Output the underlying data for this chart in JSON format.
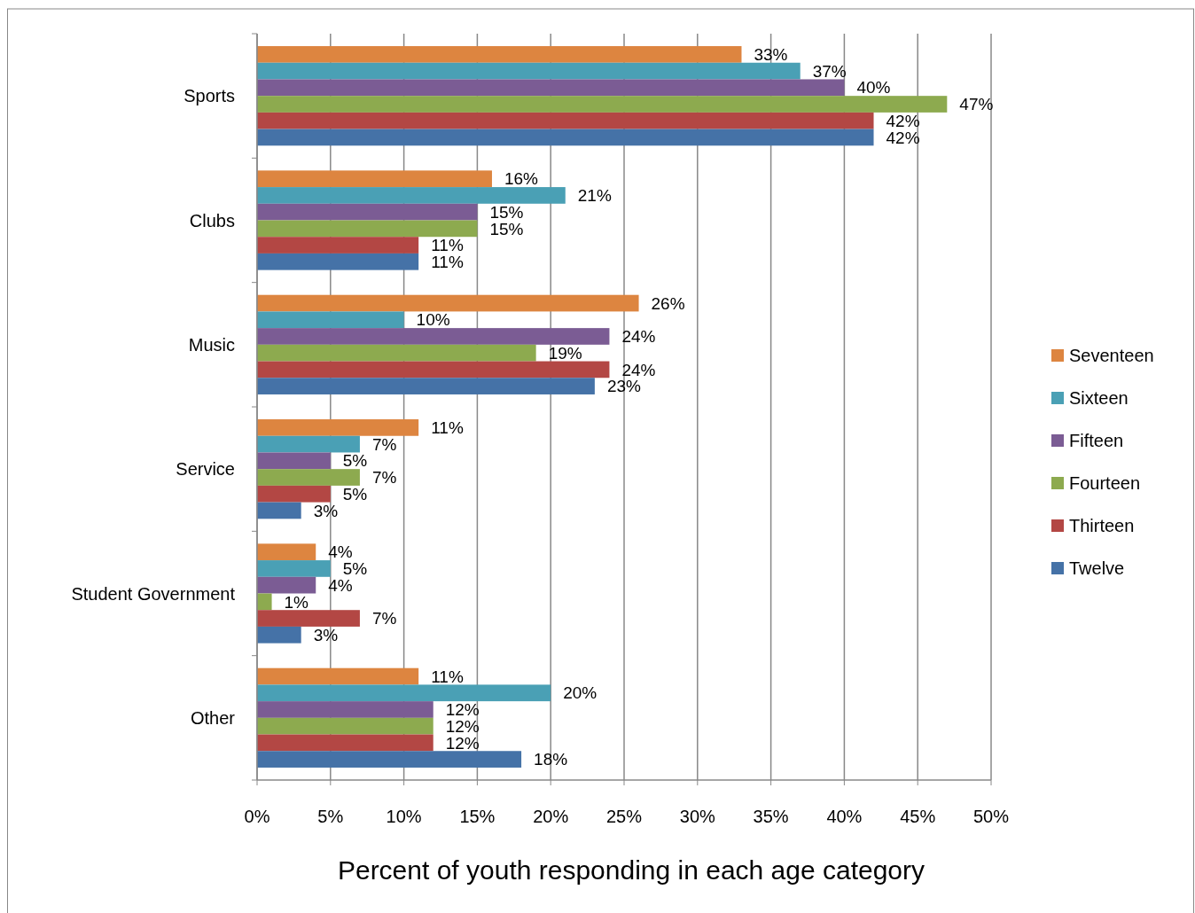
{
  "chart_data": {
    "type": "bar",
    "orientation": "horizontal",
    "xlabel": "Percent of youth responding in each age category",
    "categories": [
      "Sports",
      "Clubs",
      "Music",
      "Service",
      "Student Government",
      "Other"
    ],
    "series": [
      {
        "name": "Seventeen",
        "color": "#dd8540",
        "values": [
          33,
          16,
          26,
          11,
          4,
          11
        ],
        "value_labels": [
          "33%",
          "16%",
          "26%",
          "11%",
          "4%",
          "11%"
        ]
      },
      {
        "name": "Sixteen",
        "color": "#4aa0b5",
        "values": [
          37,
          21,
          10,
          7,
          5,
          20
        ],
        "value_labels": [
          "37%",
          "21%",
          "10%",
          "7%",
          "5%",
          "20%"
        ]
      },
      {
        "name": "Fifteen",
        "color": "#7b5c94",
        "values": [
          40,
          15,
          24,
          5,
          4,
          12
        ],
        "value_labels": [
          "40%",
          "15%",
          "24%",
          "5%",
          "4%",
          "12%"
        ]
      },
      {
        "name": "Fourteen",
        "color": "#8daa4f",
        "values": [
          47,
          15,
          19,
          7,
          1,
          12
        ],
        "value_labels": [
          "47%",
          "15%",
          "19%",
          "7%",
          "1%",
          "12%"
        ]
      },
      {
        "name": "Thirteen",
        "color": "#b34744",
        "values": [
          42,
          11,
          24,
          5,
          7,
          12
        ],
        "value_labels": [
          "42%",
          "11%",
          "24%",
          "5%",
          "7%",
          "12%"
        ]
      },
      {
        "name": "Twelve",
        "color": "#4572a7",
        "values": [
          42,
          11,
          23,
          3,
          3,
          18
        ],
        "value_labels": [
          "42%",
          "11%",
          "23%",
          "3%",
          "3%",
          "18%"
        ]
      }
    ],
    "xlim": [
      0,
      50
    ],
    "xticks": [
      {
        "value": 0,
        "label": "0%"
      },
      {
        "value": 5,
        "label": "5%"
      },
      {
        "value": 10,
        "label": "10%"
      },
      {
        "value": 15,
        "label": "15%"
      },
      {
        "value": 20,
        "label": "20%"
      },
      {
        "value": 25,
        "label": "25%"
      },
      {
        "value": 30,
        "label": "30%"
      },
      {
        "value": 35,
        "label": "35%"
      },
      {
        "value": 40,
        "label": "40%"
      },
      {
        "value": 45,
        "label": "45%"
      },
      {
        "value": 50,
        "label": "50%"
      }
    ],
    "grid": "x",
    "legend": "right"
  }
}
